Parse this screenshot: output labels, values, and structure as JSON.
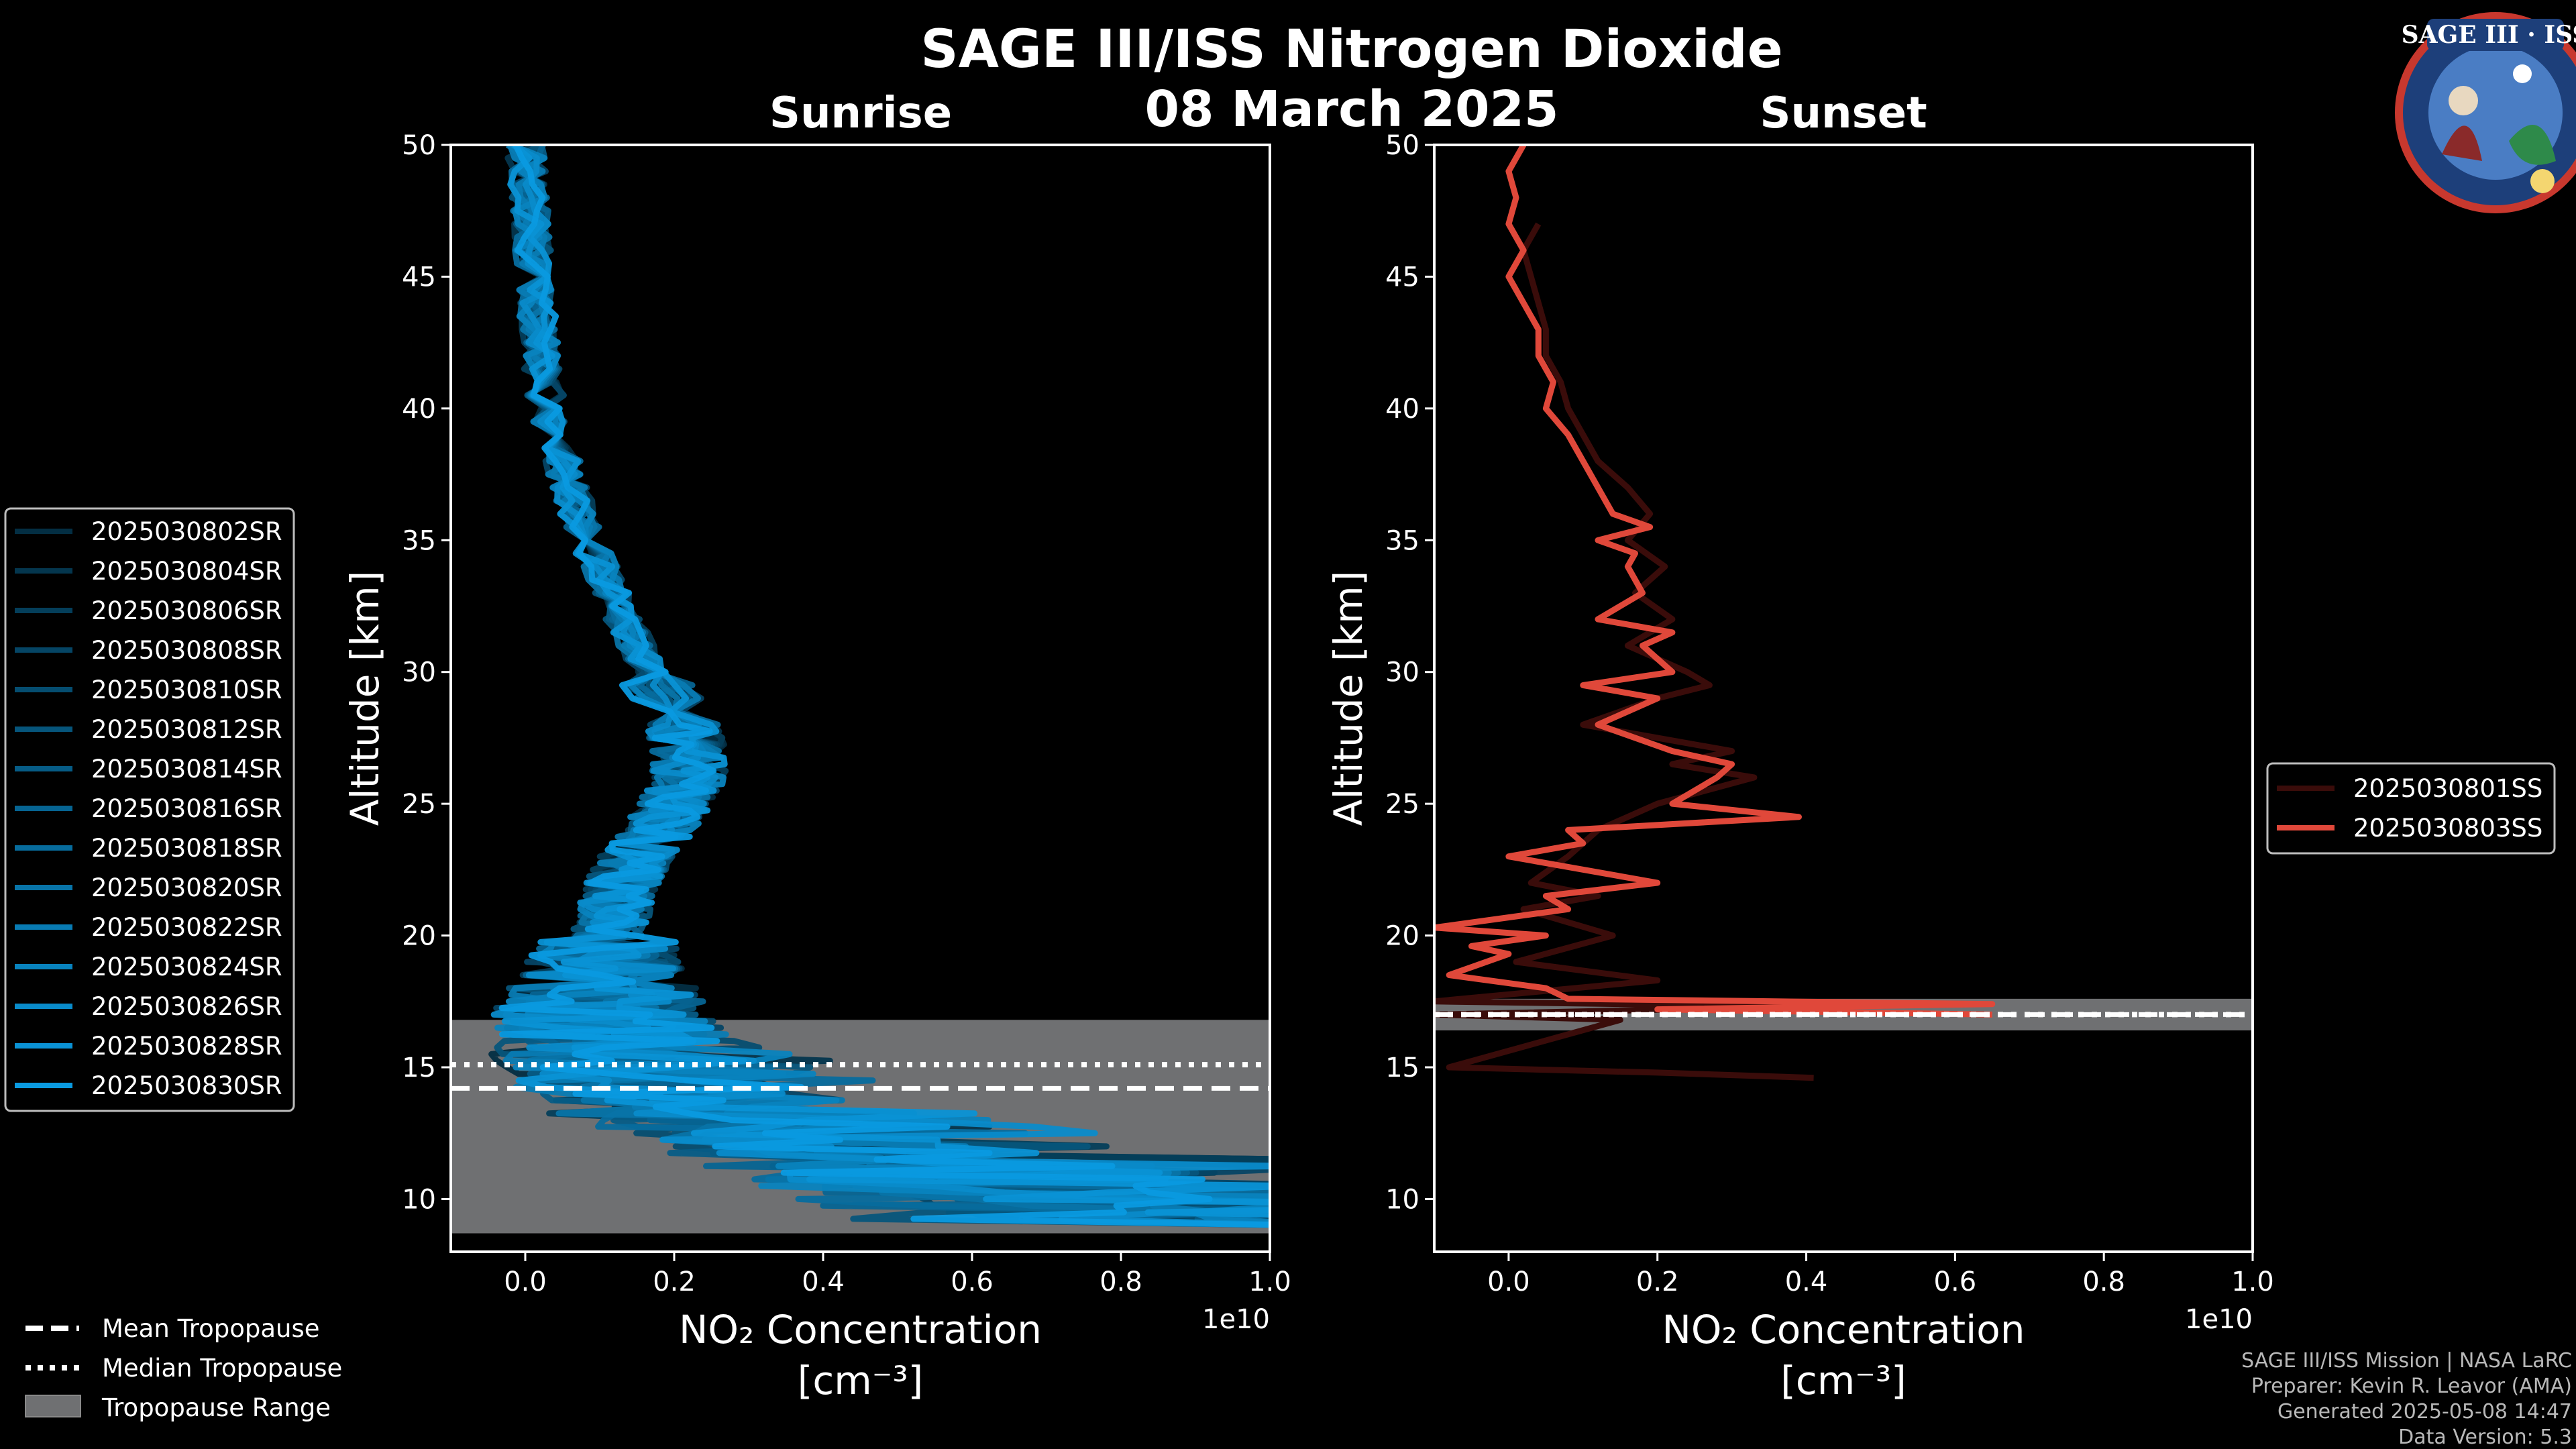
{
  "figure": {
    "title": "SAGE III/ISS Nitrogen Dioxide",
    "date": "08 March 2025",
    "logo_text": "SAGE III · ISS"
  },
  "credits": {
    "line1": "SAGE III/ISS Mission | NASA LaRC",
    "line2": "Preparer: Kevin R. Leavor (AMA)",
    "line3": "Generated 2025-05-08 14:47",
    "line4": "Data Version: 5.3"
  },
  "tropopause_legend": {
    "mean": "Mean Tropopause",
    "median": "Median Tropopause",
    "range": "Tropopause Range"
  },
  "colors": {
    "sunrise_base": "#0a9ae0",
    "sunset_base": "#e0483a",
    "tropopause_range": "#6f7072",
    "background": "#000000"
  },
  "chart_data": [
    {
      "type": "line",
      "panel": "sunrise",
      "title": "Sunrise",
      "xlabel": "NO₂ Concentration",
      "xlabel_units": "[cm⁻³]",
      "x_scale_label": "1e10",
      "ylabel": "Altitude [km]",
      "xlim": [
        -0.1,
        1.0
      ],
      "ylim": [
        8,
        50
      ],
      "xticks": [
        "0.0",
        "0.2",
        "0.4",
        "0.6",
        "0.8",
        "1.0"
      ],
      "yticks": [
        "10",
        "15",
        "20",
        "25",
        "30",
        "35",
        "40",
        "45",
        "50"
      ],
      "xtick_values": [
        0,
        0.2,
        0.4,
        0.6,
        0.8,
        1.0
      ],
      "ytick_values": [
        10,
        15,
        20,
        25,
        30,
        35,
        40,
        45,
        50
      ],
      "series": [
        {
          "name": "2025030802SR"
        },
        {
          "name": "2025030804SR"
        },
        {
          "name": "2025030806SR"
        },
        {
          "name": "2025030808SR"
        },
        {
          "name": "2025030810SR"
        },
        {
          "name": "2025030812SR"
        },
        {
          "name": "2025030814SR"
        },
        {
          "name": "2025030816SR"
        },
        {
          "name": "2025030818SR"
        },
        {
          "name": "2025030820SR"
        },
        {
          "name": "2025030822SR"
        },
        {
          "name": "2025030824SR"
        },
        {
          "name": "2025030826SR"
        },
        {
          "name": "2025030828SR"
        },
        {
          "name": "2025030830SR"
        }
      ],
      "mean_profile": {
        "altitude": [
          50,
          48,
          46,
          44,
          42,
          40,
          38,
          36,
          34,
          32,
          30,
          28,
          27,
          26,
          25,
          24,
          23,
          22,
          21,
          20,
          19,
          18,
          17,
          16,
          15,
          14,
          13,
          12,
          11,
          10,
          9
        ],
        "no2": [
          0.0,
          0.005,
          0.01,
          0.015,
          0.02,
          0.03,
          0.05,
          0.07,
          0.1,
          0.13,
          0.17,
          0.21,
          0.22,
          0.22,
          0.2,
          0.18,
          0.15,
          0.13,
          0.12,
          0.11,
          0.1,
          0.1,
          0.1,
          0.12,
          0.15,
          0.2,
          0.3,
          0.45,
          0.6,
          0.8,
          1.0
        ]
      },
      "tropopause": {
        "mean": 14.2,
        "median": 15.1,
        "range": [
          8.7,
          16.8
        ]
      }
    },
    {
      "type": "line",
      "panel": "sunset",
      "title": "Sunset",
      "xlabel": "NO₂ Concentration",
      "xlabel_units": "[cm⁻³]",
      "x_scale_label": "1e10",
      "ylabel": "Altitude [km]",
      "xlim": [
        -0.1,
        1.0
      ],
      "ylim": [
        8,
        50
      ],
      "xticks": [
        "0.0",
        "0.2",
        "0.4",
        "0.6",
        "0.8",
        "1.0"
      ],
      "yticks": [
        "10",
        "15",
        "20",
        "25",
        "30",
        "35",
        "40",
        "45",
        "50"
      ],
      "xtick_values": [
        0,
        0.2,
        0.4,
        0.6,
        0.8,
        1.0
      ],
      "ytick_values": [
        10,
        15,
        20,
        25,
        30,
        35,
        40,
        45,
        50
      ],
      "series": [
        {
          "name": "2025030801SS",
          "color": "#3a0c0a",
          "altitude": [
            47,
            46,
            45,
            43,
            42,
            41,
            40,
            39,
            38,
            37,
            36,
            35,
            34,
            33,
            32,
            31,
            30,
            29.5,
            29,
            28,
            27,
            26.5,
            26,
            25,
            24,
            23,
            22,
            21.5,
            21,
            20,
            19,
            18.3,
            17.5,
            17.3,
            17,
            16.8,
            15,
            14.8,
            14.6
          ],
          "no2": [
            0.04,
            0.02,
            0.03,
            0.05,
            0.05,
            0.07,
            0.08,
            0.1,
            0.12,
            0.16,
            0.19,
            0.16,
            0.21,
            0.17,
            0.22,
            0.16,
            0.24,
            0.27,
            0.2,
            0.1,
            0.3,
            0.22,
            0.33,
            0.2,
            0.12,
            0.08,
            0.03,
            0.12,
            0.02,
            0.14,
            0.01,
            0.2,
            -0.1,
            0.4,
            -0.1,
            0.15,
            -0.08,
            0.2,
            0.41
          ]
        },
        {
          "name": "2025030803SS",
          "color": "#e0483a",
          "altitude": [
            50,
            49,
            48,
            47,
            46,
            45,
            44,
            43,
            42,
            41,
            40,
            39,
            38,
            37,
            36,
            35.5,
            35,
            34.5,
            34,
            33,
            32,
            31.5,
            31,
            30,
            29.5,
            29,
            28,
            27,
            26.5,
            26,
            25,
            24.5,
            24,
            23.5,
            23,
            22,
            21.5,
            21,
            20.3,
            20,
            19.6,
            19.3,
            18.5,
            18,
            17.6,
            17.4,
            17.2,
            17.0
          ],
          "no2": [
            0.02,
            0.0,
            0.01,
            0.0,
            0.02,
            0.0,
            0.02,
            0.04,
            0.04,
            0.06,
            0.05,
            0.08,
            0.1,
            0.12,
            0.14,
            0.19,
            0.12,
            0.17,
            0.16,
            0.18,
            0.12,
            0.22,
            0.18,
            0.22,
            0.1,
            0.2,
            0.12,
            0.22,
            0.3,
            0.28,
            0.22,
            0.39,
            0.08,
            0.1,
            0.0,
            0.2,
            0.05,
            0.08,
            -0.1,
            0.05,
            -0.05,
            0.0,
            -0.08,
            0.05,
            0.08,
            0.65,
            0.2,
            0.65
          ]
        }
      ],
      "tropopause": {
        "mean": 17.0,
        "median": 17.0,
        "range": [
          16.4,
          17.6
        ]
      }
    }
  ]
}
